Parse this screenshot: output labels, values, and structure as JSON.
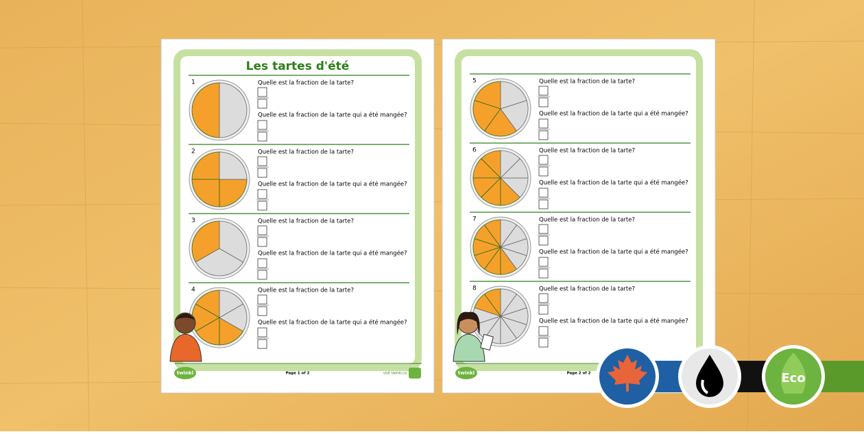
{
  "pages": [
    {
      "title": "Les tartes d'été",
      "items": [
        {
          "number": "1",
          "slices": 2,
          "filled": 1,
          "question": "Quelle est la fraction de la tarte?",
          "question2": "Quelle est la fraction de la tarte qui a été mangée?"
        },
        {
          "number": "2",
          "slices": 4,
          "filled": 3,
          "question": "Quelle est la fraction de la tarte?",
          "question2": "Quelle est la fraction de la tarte qui a été mangée?"
        },
        {
          "number": "3",
          "slices": 3,
          "filled": 1,
          "question": "Quelle est la fraction de la tarte?",
          "question2": "Quelle est la fraction de la tarte qui a été mangée?"
        },
        {
          "number": "4",
          "slices": 6,
          "filled": 4,
          "question": "Quelle est la fraction de la tarte?",
          "question2": "Quelle est la fraction de la tarte qui a été mangée?"
        }
      ],
      "footer": {
        "logo": "twinkl",
        "page": "Page 1 of 2",
        "url": "visit twinkl.ca"
      }
    },
    {
      "items": [
        {
          "number": "5",
          "slices": 5,
          "filled": 3,
          "question": "Quelle est la fraction de la tarte?",
          "question2": "Quelle est la fraction de la tarte qui a été mangée?"
        },
        {
          "number": "6",
          "slices": 8,
          "filled": 5,
          "question": "Quelle est la fraction de la tarte?",
          "question2": "Quelle est la fraction de la tarte qui a été mangée?"
        },
        {
          "number": "7",
          "slices": 10,
          "filled": 6,
          "question": "Quelle est la fraction de la tarte?",
          "question2": "Quelle est la fraction de la tarte qui a été mangée?"
        },
        {
          "number": "8",
          "slices": 10,
          "filled": 2,
          "question": "Quelle est la fraction de la tarte?",
          "question2": "Quelle est la fraction de la tarte qui a été mangée?"
        }
      ],
      "footer": {
        "logo": "twinkl",
        "page": "Page 2 of 2"
      }
    }
  ],
  "badges": {
    "eco": "Eco"
  }
}
